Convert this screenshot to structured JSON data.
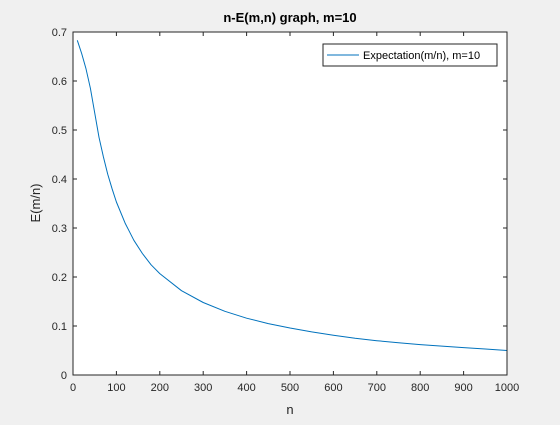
{
  "chart_data": {
    "type": "line",
    "title": "n-E(m,n) graph, m=10",
    "xlabel": "n",
    "ylabel": "E(m/n)",
    "xlim": [
      0,
      1000
    ],
    "ylim": [
      0,
      0.7
    ],
    "xticks": [
      0,
      100,
      200,
      300,
      400,
      500,
      600,
      700,
      800,
      900,
      1000
    ],
    "yticks": [
      0,
      0.1,
      0.2,
      0.3,
      0.4,
      0.5,
      0.6,
      0.7
    ],
    "xtick_labels": [
      "0",
      "100",
      "200",
      "300",
      "400",
      "500",
      "600",
      "700",
      "800",
      "900",
      "1000"
    ],
    "ytick_labels": [
      "0",
      "0.1",
      "0.2",
      "0.3",
      "0.4",
      "0.5",
      "0.6",
      "0.7"
    ],
    "grid": false,
    "legend_position": "top-right",
    "series": [
      {
        "name": "Expectation(m/n), m=10",
        "color": "#0072bd",
        "x": [
          10,
          20,
          30,
          40,
          50,
          60,
          70,
          80,
          90,
          100,
          120,
          140,
          160,
          180,
          200,
          250,
          300,
          350,
          400,
          450,
          500,
          550,
          600,
          650,
          700,
          750,
          800,
          850,
          900,
          950,
          1000
        ],
        "y": [
          0.683,
          0.656,
          0.625,
          0.585,
          0.535,
          0.485,
          0.445,
          0.41,
          0.38,
          0.353,
          0.31,
          0.275,
          0.248,
          0.225,
          0.207,
          0.172,
          0.148,
          0.13,
          0.116,
          0.105,
          0.096,
          0.088,
          0.081,
          0.075,
          0.07,
          0.066,
          0.062,
          0.059,
          0.056,
          0.053,
          0.05
        ]
      }
    ]
  }
}
